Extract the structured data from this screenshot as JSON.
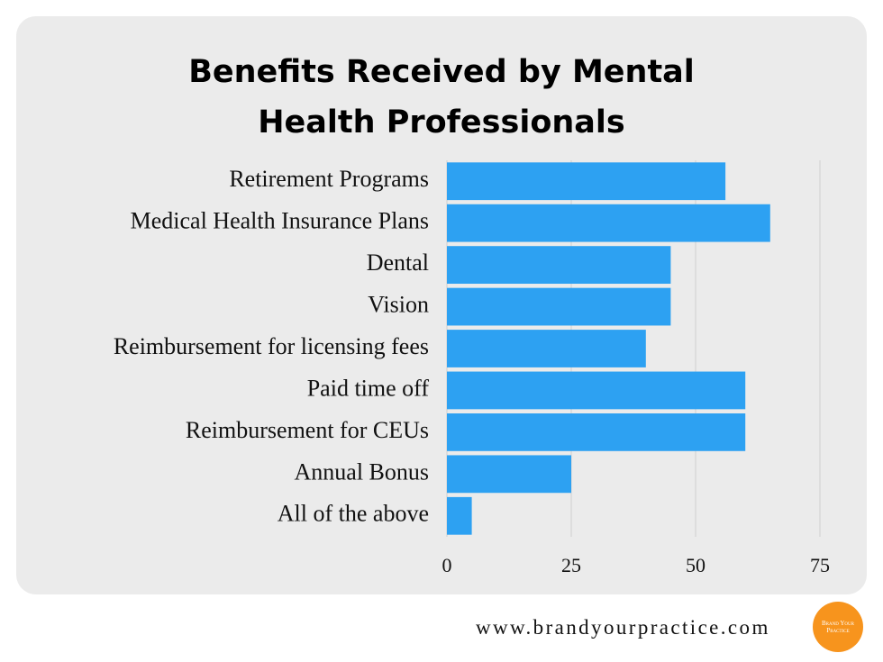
{
  "chart_data": {
    "type": "barh",
    "title": "Benefits Received by Mental Health Professionals",
    "categories": [
      "Retirement Programs",
      "Medical Health Insurance Plans",
      "Dental",
      "Vision",
      "Reimbursement for licensing fees",
      "Paid time off",
      "Reimbursement for CEUs",
      "Annual Bonus",
      "All of the above"
    ],
    "values": [
      56,
      65,
      45,
      45,
      40,
      60,
      60,
      25,
      5
    ],
    "color": "#2da1f2",
    "xlim": [
      0,
      75
    ],
    "xticks": [
      0,
      25,
      50,
      75
    ],
    "grid": true
  },
  "footer": {
    "url": "www.brandyourpractice.com",
    "logo": "Brand Your Practice"
  }
}
